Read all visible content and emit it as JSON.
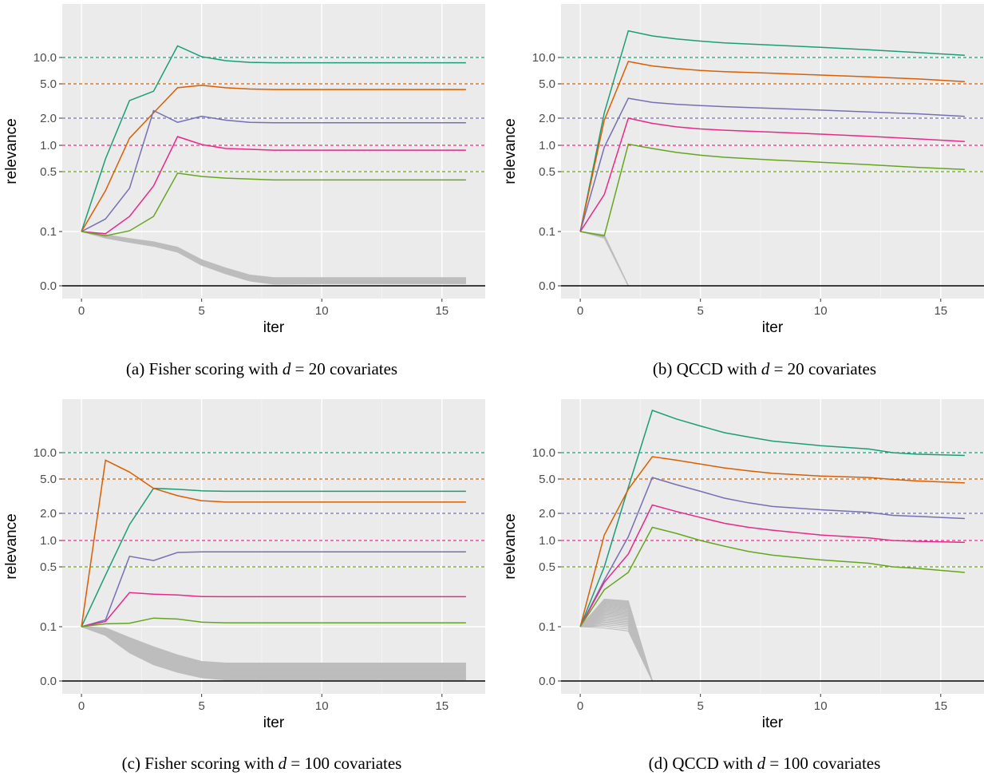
{
  "chart_data": [
    {
      "type": "line",
      "caption": {
        "prefix": "(a) Fisher scoring with ",
        "var": "d",
        "mid": " = 20",
        "suffix": " covariates"
      },
      "xlabel": "iter",
      "ylabel": "relevance",
      "xlim": [
        -0.8,
        16.8
      ],
      "xticks": [
        "0",
        "5",
        "10",
        "15"
      ],
      "yscale": "transformed",
      "yticks": [
        "0.0",
        "0.1",
        "0.5",
        "1.0",
        "2.0",
        "5.0",
        "10.0"
      ],
      "reference_lines": [
        {
          "y": 10.0,
          "color": "#1b9e77"
        },
        {
          "y": 5.0,
          "color": "#d95f02"
        },
        {
          "y": 2.0,
          "color": "#7570b3"
        },
        {
          "y": 1.0,
          "color": "#e7298a"
        },
        {
          "y": 0.5,
          "color": "#66a61e"
        },
        {
          "y": 0.0,
          "color": "#000000"
        }
      ],
      "series": [
        {
          "color": "#1b9e77",
          "x": [
            0,
            1,
            2,
            3,
            4,
            5,
            6,
            7,
            8,
            10,
            12,
            14,
            16
          ],
          "y": [
            0.1,
            0.7,
            3.2,
            4.1,
            13.5,
            10.2,
            9.2,
            8.8,
            8.7,
            8.7,
            8.7,
            8.7,
            8.7
          ]
        },
        {
          "color": "#d95f02",
          "x": [
            0,
            1,
            2,
            3,
            4,
            5,
            6,
            7,
            8,
            10,
            12,
            14,
            16
          ],
          "y": [
            0.1,
            0.3,
            1.2,
            2.3,
            4.5,
            4.8,
            4.5,
            4.35,
            4.3,
            4.3,
            4.3,
            4.3,
            4.3
          ]
        },
        {
          "color": "#7570b3",
          "x": [
            0,
            1,
            2,
            3,
            4,
            5,
            6,
            7,
            8,
            10,
            12,
            14,
            16
          ],
          "y": [
            0.1,
            0.14,
            0.32,
            2.45,
            1.8,
            2.1,
            1.9,
            1.8,
            1.78,
            1.78,
            1.78,
            1.78,
            1.78
          ]
        },
        {
          "color": "#e7298a",
          "x": [
            0,
            1,
            2,
            3,
            4,
            5,
            6,
            7,
            8,
            10,
            12,
            14,
            16
          ],
          "y": [
            0.1,
            0.096,
            0.15,
            0.34,
            1.25,
            1.02,
            0.92,
            0.9,
            0.88,
            0.88,
            0.88,
            0.88,
            0.88
          ]
        },
        {
          "color": "#66a61e",
          "x": [
            0,
            1,
            2,
            3,
            4,
            5,
            6,
            7,
            8,
            10,
            12,
            14,
            16
          ],
          "y": [
            0.1,
            0.092,
            0.102,
            0.15,
            0.48,
            0.44,
            0.42,
            0.41,
            0.4,
            0.4,
            0.4,
            0.4,
            0.4
          ]
        }
      ],
      "noise": {
        "color": "#bdbdbd",
        "count": 15,
        "x": [
          0,
          1,
          2,
          3,
          4,
          5,
          6,
          7,
          8,
          10,
          12,
          14,
          16
        ],
        "y_hi": [
          0.1,
          0.094,
          0.087,
          0.081,
          0.071,
          0.048,
          0.033,
          0.02,
          0.015,
          0.015,
          0.015,
          0.015,
          0.015
        ],
        "y_lo": [
          0.1,
          0.088,
          0.08,
          0.073,
          0.062,
          0.038,
          0.022,
          0.009,
          0.003,
          0.004,
          0.004,
          0.004,
          0.004
        ]
      }
    },
    {
      "type": "line",
      "caption": {
        "prefix": "(b) QCCD with ",
        "var": "d",
        "mid": " = 20",
        "suffix": " covariates"
      },
      "xlabel": "iter",
      "ylabel": "relevance",
      "xlim": [
        -0.8,
        16.8
      ],
      "xticks": [
        "0",
        "5",
        "10",
        "15"
      ],
      "yscale": "transformed",
      "yticks": [
        "0.0",
        "0.1",
        "0.5",
        "1.0",
        "2.0",
        "5.0",
        "10.0"
      ],
      "reference_lines": [
        {
          "y": 10.0,
          "color": "#1b9e77"
        },
        {
          "y": 5.0,
          "color": "#d95f02"
        },
        {
          "y": 2.0,
          "color": "#7570b3"
        },
        {
          "y": 1.0,
          "color": "#e7298a"
        },
        {
          "y": 0.5,
          "color": "#66a61e"
        },
        {
          "y": 0.0,
          "color": "#000000"
        }
      ],
      "series": [
        {
          "color": "#1b9e77",
          "x": [
            0,
            1,
            2,
            3,
            4,
            5,
            6,
            8,
            10,
            12,
            14,
            16
          ],
          "y": [
            0.1,
            2.3,
            20.0,
            17.5,
            16.2,
            15.3,
            14.6,
            13.8,
            13.0,
            12.2,
            11.4,
            10.6
          ]
        },
        {
          "color": "#d95f02",
          "x": [
            0,
            1,
            2,
            3,
            4,
            5,
            6,
            8,
            10,
            12,
            14,
            16
          ],
          "y": [
            0.1,
            1.9,
            9.0,
            8.0,
            7.5,
            7.1,
            6.9,
            6.6,
            6.3,
            6.0,
            5.7,
            5.3
          ]
        },
        {
          "color": "#7570b3",
          "x": [
            0,
            1,
            2,
            3,
            4,
            5,
            6,
            8,
            10,
            12,
            14,
            16
          ],
          "y": [
            0.1,
            0.95,
            3.4,
            3.05,
            2.9,
            2.8,
            2.72,
            2.6,
            2.48,
            2.36,
            2.25,
            2.1
          ]
        },
        {
          "color": "#e7298a",
          "x": [
            0,
            1,
            2,
            3,
            4,
            5,
            6,
            8,
            10,
            12,
            14,
            16
          ],
          "y": [
            0.1,
            0.27,
            2.0,
            1.75,
            1.6,
            1.52,
            1.47,
            1.4,
            1.33,
            1.26,
            1.18,
            1.1
          ]
        },
        {
          "color": "#66a61e",
          "x": [
            0,
            1,
            2,
            3,
            4,
            5,
            6,
            8,
            10,
            12,
            14,
            16
          ],
          "y": [
            0.1,
            0.092,
            1.03,
            0.92,
            0.83,
            0.77,
            0.73,
            0.68,
            0.64,
            0.6,
            0.56,
            0.53
          ]
        }
      ],
      "noise": {
        "color": "#bdbdbd",
        "count": 15,
        "x": [
          0,
          1,
          2
        ],
        "y_hi": [
          0.1,
          0.094,
          0.0
        ],
        "y_lo": [
          0.1,
          0.088,
          0.0
        ]
      }
    },
    {
      "type": "line",
      "caption": {
        "prefix": "(c) Fisher scoring with ",
        "var": "d",
        "mid": " = 100",
        "suffix": " covariates"
      },
      "xlabel": "iter",
      "ylabel": "relevance",
      "xlim": [
        -0.8,
        16.8
      ],
      "xticks": [
        "0",
        "5",
        "10",
        "15"
      ],
      "yscale": "transformed",
      "yticks": [
        "0.0",
        "0.1",
        "0.5",
        "1.0",
        "2.0",
        "5.0",
        "10.0"
      ],
      "reference_lines": [
        {
          "y": 10.0,
          "color": "#1b9e77"
        },
        {
          "y": 5.0,
          "color": "#d95f02"
        },
        {
          "y": 2.0,
          "color": "#7570b3"
        },
        {
          "y": 1.0,
          "color": "#e7298a"
        },
        {
          "y": 0.5,
          "color": "#66a61e"
        },
        {
          "y": 0.0,
          "color": "#000000"
        }
      ],
      "series": [
        {
          "color": "#1b9e77",
          "x": [
            0,
            1,
            2,
            3,
            4,
            5,
            6,
            8,
            10,
            12,
            14,
            16
          ],
          "y": [
            0.1,
            0.4,
            1.5,
            3.9,
            3.8,
            3.65,
            3.6,
            3.6,
            3.6,
            3.6,
            3.6,
            3.6
          ]
        },
        {
          "color": "#d95f02",
          "x": [
            0,
            1,
            2,
            3,
            4,
            5,
            6,
            8,
            10,
            12,
            14,
            16
          ],
          "y": [
            0.1,
            8.2,
            6.0,
            3.9,
            3.2,
            2.8,
            2.7,
            2.7,
            2.7,
            2.7,
            2.7,
            2.7
          ]
        },
        {
          "color": "#7570b3",
          "x": [
            0,
            1,
            2,
            3,
            4,
            5,
            6,
            8,
            10,
            12,
            14,
            16
          ],
          "y": [
            0.1,
            0.12,
            0.66,
            0.59,
            0.73,
            0.74,
            0.74,
            0.74,
            0.74,
            0.74,
            0.74,
            0.74
          ]
        },
        {
          "color": "#e7298a",
          "x": [
            0,
            1,
            2,
            3,
            4,
            5,
            6,
            8,
            10,
            12,
            14,
            16
          ],
          "y": [
            0.1,
            0.115,
            0.25,
            0.24,
            0.235,
            0.225,
            0.224,
            0.224,
            0.224,
            0.224,
            0.224,
            0.224
          ]
        },
        {
          "color": "#66a61e",
          "x": [
            0,
            1,
            2,
            3,
            4,
            5,
            6,
            8,
            10,
            12,
            14,
            16
          ],
          "y": [
            0.1,
            0.108,
            0.11,
            0.126,
            0.123,
            0.113,
            0.111,
            0.111,
            0.111,
            0.111,
            0.111,
            0.111
          ]
        }
      ],
      "noise": {
        "color": "#bdbdbd",
        "count": 30,
        "x": [
          0,
          1,
          2,
          3,
          4,
          5,
          6,
          8,
          10,
          12,
          14,
          16
        ],
        "y_hi": [
          0.1,
          0.098,
          0.08,
          0.063,
          0.048,
          0.036,
          0.033,
          0.033,
          0.033,
          0.033,
          0.033,
          0.033
        ],
        "y_lo": [
          0.1,
          0.084,
          0.052,
          0.03,
          0.016,
          0.006,
          0.002,
          0.002,
          0.002,
          0.002,
          0.002,
          0.002
        ]
      }
    },
    {
      "type": "line",
      "caption": {
        "prefix": "(d) QCCD with ",
        "var": "d",
        "mid": " = 100",
        "suffix": " covariates"
      },
      "xlabel": "iter",
      "ylabel": "relevance",
      "xlim": [
        -0.8,
        16.8
      ],
      "xticks": [
        "0",
        "5",
        "10",
        "15"
      ],
      "yscale": "transformed",
      "yticks": [
        "0.0",
        "0.1",
        "0.5",
        "1.0",
        "2.0",
        "5.0",
        "10.0"
      ],
      "reference_lines": [
        {
          "y": 10.0,
          "color": "#1b9e77"
        },
        {
          "y": 5.0,
          "color": "#d95f02"
        },
        {
          "y": 2.0,
          "color": "#7570b3"
        },
        {
          "y": 1.0,
          "color": "#e7298a"
        },
        {
          "y": 0.5,
          "color": "#66a61e"
        },
        {
          "y": 0.0,
          "color": "#000000"
        }
      ],
      "series": [
        {
          "color": "#1b9e77",
          "x": [
            0,
            1,
            2,
            3,
            4,
            5,
            6,
            7,
            8,
            10,
            12,
            13,
            14,
            16
          ],
          "y": [
            0.1,
            0.5,
            4.0,
            30.0,
            24.0,
            20.0,
            16.8,
            15.0,
            13.5,
            12.0,
            11.0,
            10.0,
            9.6,
            9.3
          ]
        },
        {
          "color": "#d95f02",
          "x": [
            0,
            1,
            2,
            3,
            4,
            5,
            6,
            7,
            8,
            10,
            12,
            13,
            14,
            16
          ],
          "y": [
            0.1,
            1.15,
            3.8,
            9.0,
            8.2,
            7.4,
            6.7,
            6.2,
            5.8,
            5.4,
            5.2,
            4.95,
            4.75,
            4.5
          ]
        },
        {
          "color": "#7570b3",
          "x": [
            0,
            1,
            2,
            3,
            4,
            5,
            6,
            7,
            8,
            10,
            12,
            13,
            14,
            16
          ],
          "y": [
            0.1,
            0.35,
            1.1,
            5.2,
            4.3,
            3.6,
            3.0,
            2.65,
            2.4,
            2.2,
            2.05,
            1.9,
            1.85,
            1.75
          ]
        },
        {
          "color": "#e7298a",
          "x": [
            0,
            1,
            2,
            3,
            4,
            5,
            6,
            7,
            8,
            10,
            12,
            13,
            14,
            16
          ],
          "y": [
            0.1,
            0.33,
            0.7,
            2.5,
            2.1,
            1.8,
            1.55,
            1.4,
            1.3,
            1.15,
            1.07,
            1.0,
            0.98,
            0.95
          ]
        },
        {
          "color": "#66a61e",
          "x": [
            0,
            1,
            2,
            3,
            4,
            5,
            6,
            7,
            8,
            10,
            12,
            13,
            14,
            16
          ],
          "y": [
            0.1,
            0.27,
            0.43,
            1.4,
            1.2,
            1.0,
            0.86,
            0.75,
            0.68,
            0.6,
            0.55,
            0.5,
            0.48,
            0.43
          ]
        }
      ],
      "noise": {
        "color": "#bdbdbd",
        "count": 30,
        "x": [
          0,
          1,
          2,
          3
        ],
        "y_hi": [
          0.1,
          0.21,
          0.2,
          0.0
        ],
        "y_lo": [
          0.1,
          0.098,
          0.092,
          0.0
        ]
      }
    }
  ]
}
